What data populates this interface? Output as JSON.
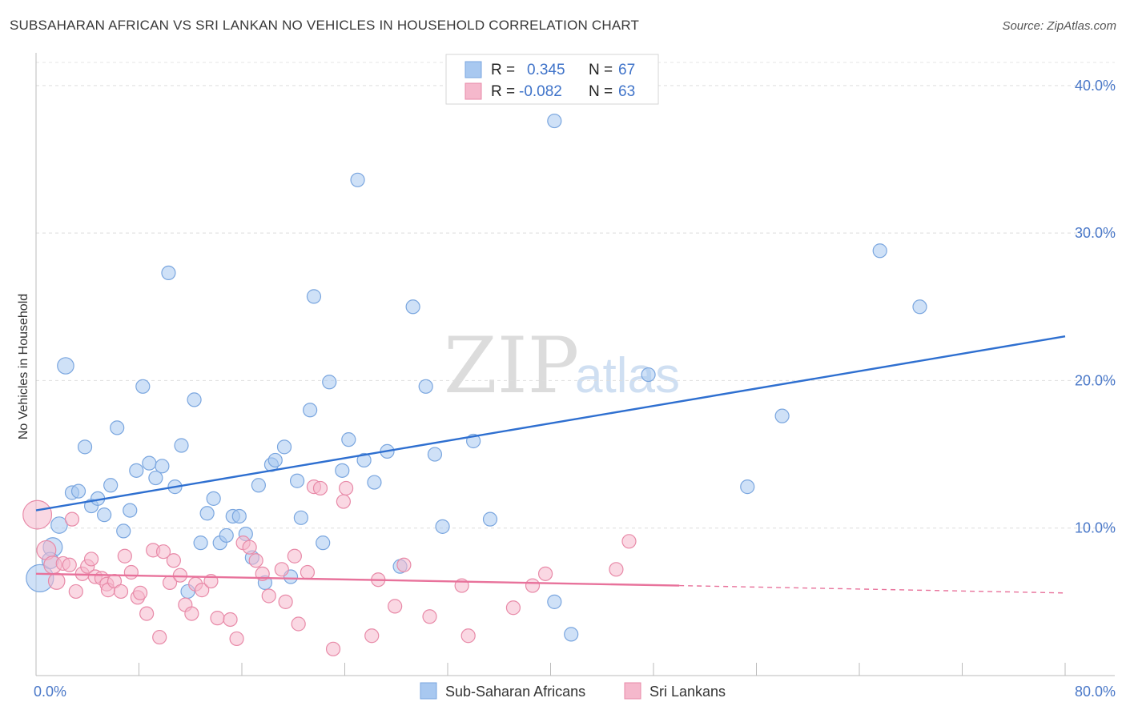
{
  "header": {
    "title": "SUBSAHARAN AFRICAN VS SRI LANKAN NO VEHICLES IN HOUSEHOLD CORRELATION CHART",
    "source": "Source: ZipAtlas.com"
  },
  "watermark": {
    "zip": "ZIP",
    "atlas": "atlas"
  },
  "legend": {
    "rows": [
      {
        "r_label": "R =",
        "r_value": "0.345",
        "n_label": "N =",
        "n_value": "67",
        "color": "#a8c8f0"
      },
      {
        "r_label": "R =",
        "r_value": "-0.082",
        "n_label": "N =",
        "n_value": "63",
        "color": "#f5b8cc"
      }
    ]
  },
  "bottom_legend": [
    {
      "label": "Sub-Saharan Africans",
      "color": "#a8c8f0"
    },
    {
      "label": "Sri Lankans",
      "color": "#f5b8cc"
    }
  ],
  "chart_data": {
    "type": "scatter",
    "title": "SUBSAHARAN AFRICAN VS SRI LANKAN NO VEHICLES IN HOUSEHOLD CORRELATION CHART",
    "ylabel": "No Vehicles in Household",
    "xlim": [
      0,
      80
    ],
    "ylim": [
      0,
      42
    ],
    "x_tick_labels": [
      "0.0%",
      "80.0%"
    ],
    "y_ticks": [
      10,
      20,
      30,
      40
    ],
    "y_tick_labels": [
      "10.0%",
      "20.0%",
      "30.0%",
      "40.0%"
    ],
    "grid": true,
    "legend_position": "top-center",
    "series": [
      {
        "name": "Sub-Saharan Africans",
        "color": "#a8c8f0",
        "stroke": "#7aa6df",
        "trend": {
          "x": [
            0,
            80
          ],
          "y": [
            11.2,
            23.0
          ],
          "color": "#2e6fd0"
        },
        "points": [
          {
            "x": 0.3,
            "y": 6.6,
            "s": 2
          },
          {
            "x": 1.3,
            "y": 8.7,
            "s": 1.4
          },
          {
            "x": 1.1,
            "y": 7.8,
            "s": 1.2
          },
          {
            "x": 1.8,
            "y": 10.2,
            "s": 1.2
          },
          {
            "x": 2.3,
            "y": 21.0,
            "s": 1.2
          },
          {
            "x": 2.8,
            "y": 12.4
          },
          {
            "x": 3.3,
            "y": 12.5
          },
          {
            "x": 3.8,
            "y": 15.5
          },
          {
            "x": 4.3,
            "y": 11.5
          },
          {
            "x": 4.8,
            "y": 12.0
          },
          {
            "x": 5.3,
            "y": 10.9
          },
          {
            "x": 5.8,
            "y": 12.9
          },
          {
            "x": 6.3,
            "y": 16.8
          },
          {
            "x": 6.8,
            "y": 9.8
          },
          {
            "x": 7.3,
            "y": 11.2
          },
          {
            "x": 7.8,
            "y": 13.9
          },
          {
            "x": 8.3,
            "y": 19.6
          },
          {
            "x": 8.8,
            "y": 14.4
          },
          {
            "x": 9.3,
            "y": 13.4
          },
          {
            "x": 9.8,
            "y": 14.2
          },
          {
            "x": 10.3,
            "y": 27.3
          },
          {
            "x": 10.8,
            "y": 12.8
          },
          {
            "x": 11.3,
            "y": 15.6
          },
          {
            "x": 11.8,
            "y": 5.7
          },
          {
            "x": 12.3,
            "y": 18.7
          },
          {
            "x": 12.8,
            "y": 9.0
          },
          {
            "x": 13.3,
            "y": 11.0
          },
          {
            "x": 13.8,
            "y": 12.0
          },
          {
            "x": 14.3,
            "y": 9.0
          },
          {
            "x": 14.8,
            "y": 9.5
          },
          {
            "x": 15.3,
            "y": 10.8
          },
          {
            "x": 15.8,
            "y": 10.8
          },
          {
            "x": 16.3,
            "y": 9.6
          },
          {
            "x": 16.8,
            "y": 8.0
          },
          {
            "x": 17.3,
            "y": 12.9
          },
          {
            "x": 17.8,
            "y": 6.3
          },
          {
            "x": 18.3,
            "y": 14.3
          },
          {
            "x": 18.6,
            "y": 14.6
          },
          {
            "x": 19.3,
            "y": 15.5
          },
          {
            "x": 19.8,
            "y": 6.7
          },
          {
            "x": 20.3,
            "y": 13.2
          },
          {
            "x": 20.6,
            "y": 10.7
          },
          {
            "x": 21.3,
            "y": 18.0
          },
          {
            "x": 21.6,
            "y": 25.7
          },
          {
            "x": 22.3,
            "y": 9.0
          },
          {
            "x": 22.8,
            "y": 19.9
          },
          {
            "x": 23.8,
            "y": 13.9
          },
          {
            "x": 24.3,
            "y": 16.0
          },
          {
            "x": 25.0,
            "y": 33.6
          },
          {
            "x": 25.5,
            "y": 14.6
          },
          {
            "x": 26.3,
            "y": 13.1
          },
          {
            "x": 27.3,
            "y": 15.2
          },
          {
            "x": 28.3,
            "y": 7.4
          },
          {
            "x": 29.3,
            "y": 25.0
          },
          {
            "x": 30.3,
            "y": 19.6
          },
          {
            "x": 31.0,
            "y": 15.0
          },
          {
            "x": 31.6,
            "y": 10.1
          },
          {
            "x": 34.0,
            "y": 15.9
          },
          {
            "x": 35.3,
            "y": 10.6
          },
          {
            "x": 40.3,
            "y": 37.6
          },
          {
            "x": 40.3,
            "y": 5.0
          },
          {
            "x": 41.6,
            "y": 2.8
          },
          {
            "x": 47.6,
            "y": 20.4
          },
          {
            "x": 55.3,
            "y": 12.8
          },
          {
            "x": 58.0,
            "y": 17.6
          },
          {
            "x": 65.6,
            "y": 28.8
          },
          {
            "x": 68.7,
            "y": 25.0
          }
        ]
      },
      {
        "name": "Sri Lankans",
        "color": "#f5b8cc",
        "stroke": "#e88aa8",
        "trend": {
          "x": [
            0,
            50
          ],
          "y": [
            6.9,
            6.1
          ],
          "color": "#e8729b"
        },
        "trend_dashed": {
          "x": [
            50,
            80
          ],
          "y": [
            6.1,
            5.6
          ]
        },
        "points": [
          {
            "x": 0.1,
            "y": 10.9,
            "s": 2.1
          },
          {
            "x": 0.8,
            "y": 8.5,
            "s": 1.4
          },
          {
            "x": 1.3,
            "y": 7.5,
            "s": 1.3
          },
          {
            "x": 1.6,
            "y": 6.4,
            "s": 1.2
          },
          {
            "x": 2.1,
            "y": 7.6
          },
          {
            "x": 2.6,
            "y": 7.5
          },
          {
            "x": 2.8,
            "y": 10.6
          },
          {
            "x": 3.1,
            "y": 5.7
          },
          {
            "x": 3.6,
            "y": 6.9
          },
          {
            "x": 4.0,
            "y": 7.4
          },
          {
            "x": 4.3,
            "y": 7.9
          },
          {
            "x": 4.6,
            "y": 6.7
          },
          {
            "x": 5.1,
            "y": 6.6
          },
          {
            "x": 5.5,
            "y": 6.2
          },
          {
            "x": 5.6,
            "y": 5.8
          },
          {
            "x": 6.1,
            "y": 6.4
          },
          {
            "x": 6.6,
            "y": 5.7
          },
          {
            "x": 6.9,
            "y": 8.1
          },
          {
            "x": 7.4,
            "y": 7.0
          },
          {
            "x": 7.9,
            "y": 5.3
          },
          {
            "x": 8.1,
            "y": 5.6
          },
          {
            "x": 8.6,
            "y": 4.2
          },
          {
            "x": 9.1,
            "y": 8.5
          },
          {
            "x": 9.6,
            "y": 2.6
          },
          {
            "x": 9.9,
            "y": 8.4
          },
          {
            "x": 10.4,
            "y": 6.3
          },
          {
            "x": 10.7,
            "y": 7.8
          },
          {
            "x": 11.2,
            "y": 6.8
          },
          {
            "x": 11.6,
            "y": 4.8
          },
          {
            "x": 12.1,
            "y": 4.2
          },
          {
            "x": 12.4,
            "y": 6.2
          },
          {
            "x": 12.9,
            "y": 5.8
          },
          {
            "x": 13.6,
            "y": 6.4
          },
          {
            "x": 14.1,
            "y": 3.9
          },
          {
            "x": 15.1,
            "y": 3.8
          },
          {
            "x": 15.6,
            "y": 2.5
          },
          {
            "x": 16.1,
            "y": 9.0
          },
          {
            "x": 16.6,
            "y": 8.7
          },
          {
            "x": 17.1,
            "y": 7.8
          },
          {
            "x": 17.6,
            "y": 6.9
          },
          {
            "x": 18.1,
            "y": 5.4
          },
          {
            "x": 19.1,
            "y": 7.2
          },
          {
            "x": 19.4,
            "y": 5.0
          },
          {
            "x": 20.1,
            "y": 8.1
          },
          {
            "x": 20.4,
            "y": 3.5
          },
          {
            "x": 21.1,
            "y": 7.0
          },
          {
            "x": 21.6,
            "y": 12.8
          },
          {
            "x": 22.1,
            "y": 12.7
          },
          {
            "x": 23.1,
            "y": 1.8
          },
          {
            "x": 23.9,
            "y": 11.8
          },
          {
            "x": 24.1,
            "y": 12.7
          },
          {
            "x": 26.1,
            "y": 2.7
          },
          {
            "x": 26.6,
            "y": 6.5
          },
          {
            "x": 27.9,
            "y": 4.7
          },
          {
            "x": 28.6,
            "y": 7.5
          },
          {
            "x": 30.6,
            "y": 4.0
          },
          {
            "x": 33.1,
            "y": 6.1
          },
          {
            "x": 33.6,
            "y": 2.7
          },
          {
            "x": 37.1,
            "y": 4.6
          },
          {
            "x": 38.6,
            "y": 6.1
          },
          {
            "x": 39.6,
            "y": 6.9
          },
          {
            "x": 45.1,
            "y": 7.2
          },
          {
            "x": 46.1,
            "y": 9.1
          }
        ]
      }
    ]
  }
}
